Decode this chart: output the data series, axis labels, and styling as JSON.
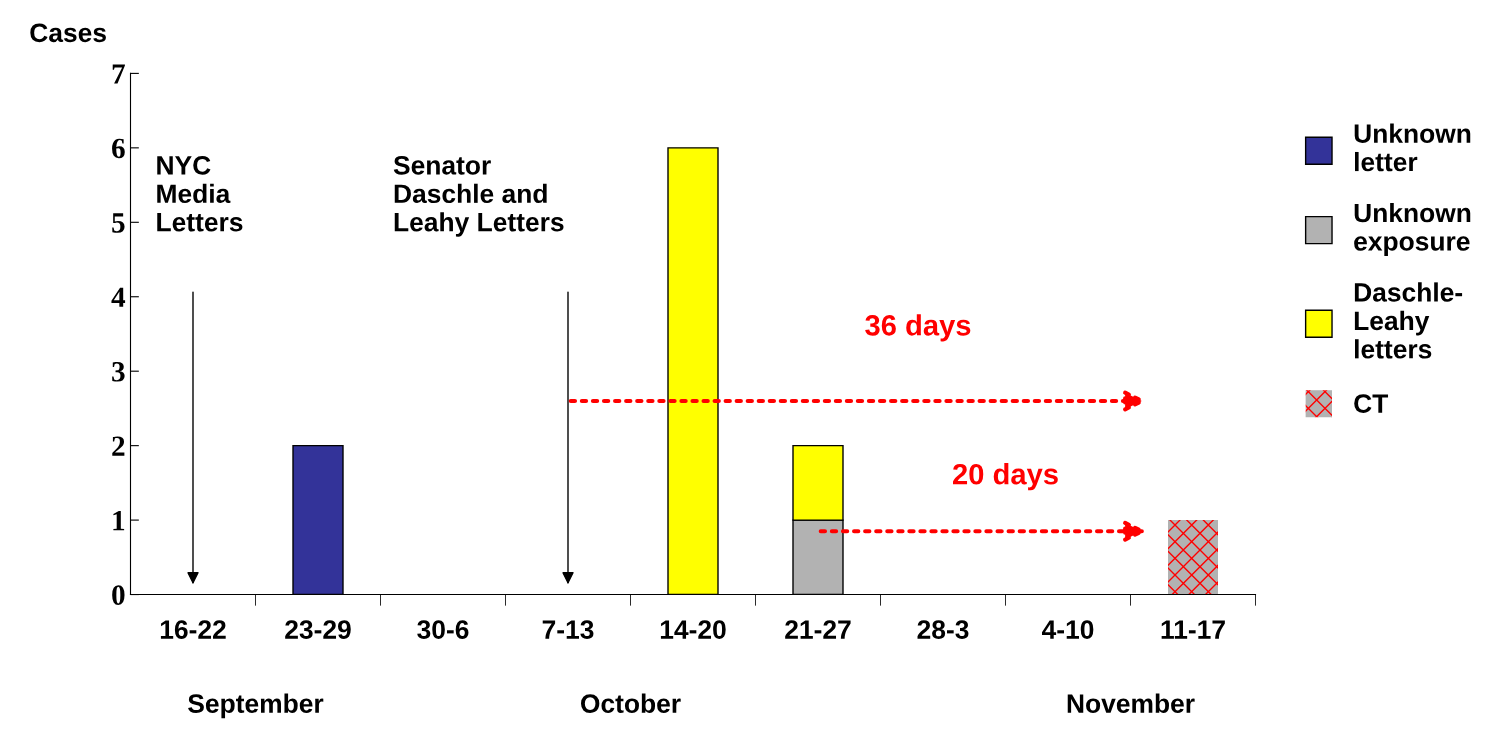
{
  "chart_data": {
    "type": "bar",
    "stacked": true,
    "ylabel": "Cases",
    "categories": [
      "16-22",
      "23-29",
      "30-6",
      "7-13",
      "14-20",
      "21-27",
      "28-3",
      "4-10",
      "11-17"
    ],
    "series": [
      {
        "name": "Unknown\nletter",
        "color": "#333399",
        "values": [
          0,
          2,
          0,
          0,
          0,
          0,
          0,
          0,
          0
        ]
      },
      {
        "name": "Unknown\nexposure",
        "color": "#b2b2b2",
        "values": [
          0,
          0,
          0,
          0,
          0,
          1,
          0,
          0,
          0
        ]
      },
      {
        "name": "Daschle-\nLeahy\nletters",
        "color": "#ffff00",
        "values": [
          0,
          0,
          0,
          0,
          6,
          1,
          0,
          0,
          0
        ]
      },
      {
        "name": "CT",
        "color": "#b2b2b2",
        "values": [
          0,
          0,
          0,
          0,
          0,
          0,
          0,
          0,
          1
        ]
      }
    ],
    "ylim": [
      0,
      7
    ],
    "yticks": [
      0,
      1,
      2,
      3,
      4,
      5,
      6,
      7
    ],
    "grid": false,
    "legend": "right",
    "annotations": [
      "NYC\nMedia\nLetters",
      "Senator\nDaschle and\nLeahy Letters",
      "36 days",
      "20 days",
      "September",
      "October",
      "November"
    ]
  }
}
